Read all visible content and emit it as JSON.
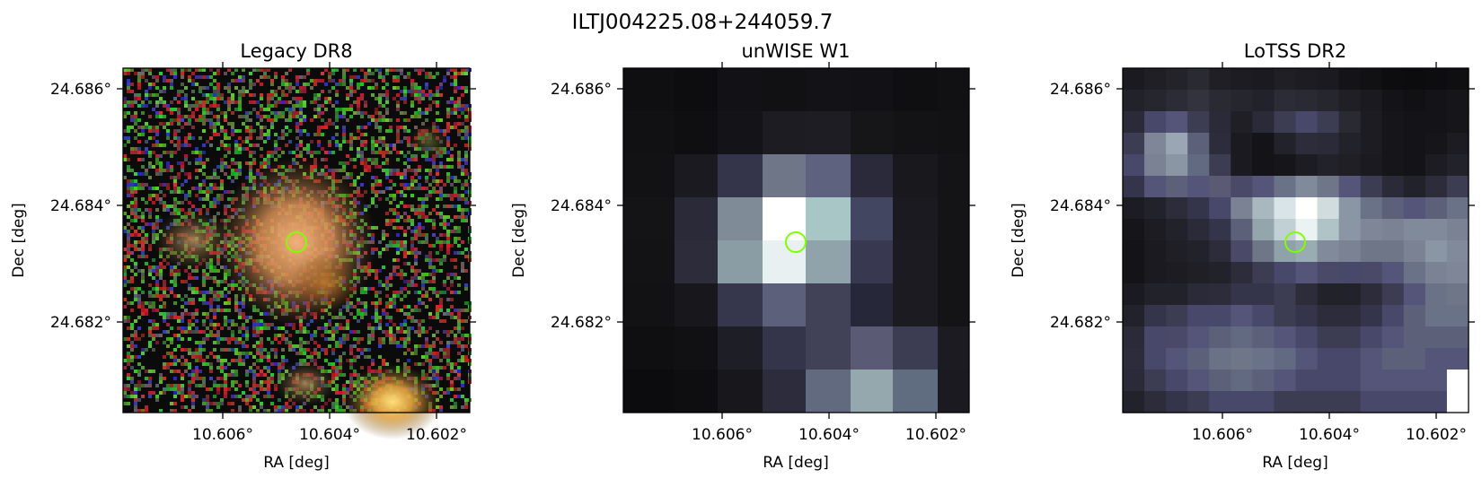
{
  "figure": {
    "title": "ILTJ004225.08+244059.7"
  },
  "colors": {
    "marker": "#7fff00",
    "frame": "#000000"
  },
  "panels": [
    {
      "title": "Legacy DR8",
      "xlabel": "RA [deg]",
      "ylabel": "Dec [deg]",
      "xticks": [
        "10.606°",
        "10.604°",
        "10.602°"
      ],
      "yticks": [
        "24.686°",
        "24.684°",
        "24.682°"
      ],
      "image": "optical-rgb-cutout"
    },
    {
      "title": "unWISE W1",
      "xlabel": "RA [deg]",
      "ylabel": "Dec [deg]",
      "xticks": [
        "10.606°",
        "10.604°",
        "10.602°"
      ],
      "yticks": [
        "24.686°",
        "24.684°",
        "24.682°"
      ],
      "image": "infrared-grayscale-cutout"
    },
    {
      "title": "LoTSS DR2",
      "xlabel": "RA [deg]",
      "ylabel": "Dec [deg]",
      "xticks": [
        "10.606°",
        "10.604°",
        "10.602°"
      ],
      "yticks": [
        "24.686°",
        "24.684°",
        "24.682°"
      ],
      "image": "radio-grayscale-cutout"
    }
  ]
}
